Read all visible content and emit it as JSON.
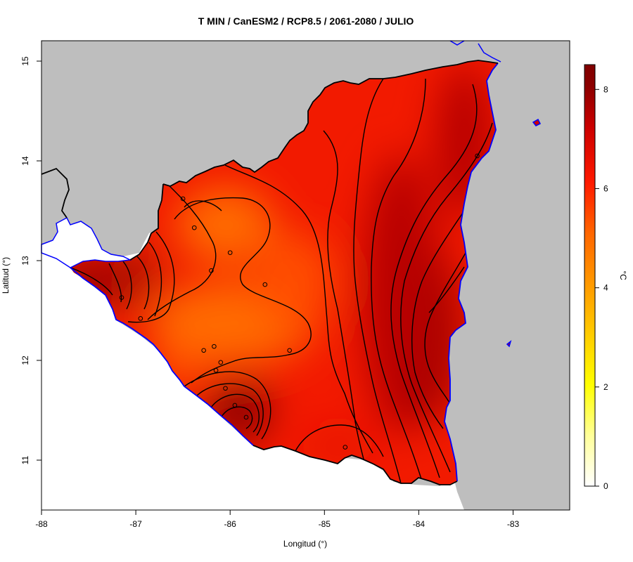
{
  "title": "T MIN / CanESM2 / RCP8.5 / 2061-2080 / JULIO",
  "xlabel": "Longitud (°)",
  "ylabel": "Latitud (°)",
  "x_ticks": [
    "-88",
    "-87",
    "-86",
    "-85",
    "-84",
    "-83"
  ],
  "y_ticks": [
    "15",
    "14",
    "13",
    "12",
    "11"
  ],
  "colorbar": {
    "label": "°C",
    "ticks": [
      "0",
      "2",
      "4",
      "6",
      "8"
    ],
    "min": 0,
    "max": 8.5
  },
  "colors": {
    "background_land_other": "#bebebe",
    "sea_outline": "#0000ff",
    "border_line": "#000000",
    "contour_line": "#000000"
  },
  "chart_data": {
    "type": "heatmap",
    "variable": "T MIN",
    "model": "CanESM2",
    "scenario": "RCP8.5",
    "period": "2061-2080",
    "month": "JULIO",
    "units": "°C",
    "xlim": [
      -88,
      -82.4
    ],
    "ylim": [
      10.5,
      15.2
    ],
    "color_scale": [
      {
        "value": 0,
        "color": "#ffffff"
      },
      {
        "value": 1,
        "color": "#ffff99"
      },
      {
        "value": 2,
        "color": "#ffff00"
      },
      {
        "value": 3,
        "color": "#ffcc00"
      },
      {
        "value": 4,
        "color": "#ff9900"
      },
      {
        "value": 5,
        "color": "#ff6600"
      },
      {
        "value": 6,
        "color": "#ff1a00"
      },
      {
        "value": 7,
        "color": "#cc0000"
      },
      {
        "value": 8,
        "color": "#8b0000"
      },
      {
        "value": 8.5,
        "color": "#800000"
      }
    ],
    "stations": [
      {
        "lon": -86.5,
        "lat": 13.62
      },
      {
        "lon": -86.38,
        "lat": 13.33
      },
      {
        "lon": -86.0,
        "lat": 13.08
      },
      {
        "lon": -86.2,
        "lat": 12.9
      },
      {
        "lon": -85.63,
        "lat": 12.76
      },
      {
        "lon": -87.15,
        "lat": 12.63
      },
      {
        "lon": -86.95,
        "lat": 12.42
      },
      {
        "lon": -86.28,
        "lat": 12.1
      },
      {
        "lon": -86.17,
        "lat": 12.14
      },
      {
        "lon": -85.37,
        "lat": 12.1
      },
      {
        "lon": -86.1,
        "lat": 11.98
      },
      {
        "lon": -86.15,
        "lat": 11.9
      },
      {
        "lon": -86.05,
        "lat": 11.72
      },
      {
        "lon": -85.95,
        "lat": 11.55
      },
      {
        "lon": -85.83,
        "lat": 11.43
      },
      {
        "lon": -84.78,
        "lat": 11.13
      },
      {
        "lon": -83.38,
        "lat": 14.05
      }
    ]
  }
}
